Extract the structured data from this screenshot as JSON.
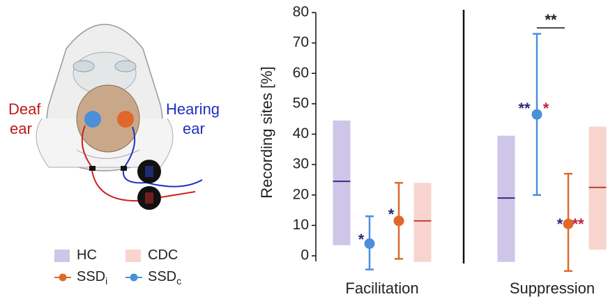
{
  "illustration": {
    "left_label": [
      "Deaf",
      "ear"
    ],
    "right_label": [
      "Hearing",
      "ear"
    ]
  },
  "chart_data": {
    "type": "range",
    "ylabel": "Recording sites [%]",
    "categories": [
      "Facilitation",
      "Suppression"
    ],
    "ylim": [
      0,
      80
    ],
    "yticks": [
      0,
      10,
      20,
      30,
      40,
      50,
      60,
      70,
      80
    ],
    "series": [
      {
        "name": "HC",
        "kind": "band",
        "color": "#cdc6e8",
        "line_color": "#3a2a7a",
        "low": [
          3.5,
          -2
        ],
        "high": [
          44.5,
          39.5
        ],
        "values": [
          24.5,
          19
        ]
      },
      {
        "name": "CDC",
        "kind": "band",
        "color": "#f7d5ce",
        "line_color": "#c0403a",
        "low": [
          -2,
          2
        ],
        "high": [
          24,
          42.5
        ],
        "values": [
          11.5,
          22.5
        ]
      },
      {
        "name": "SSD",
        "subscript": "i",
        "kind": "point",
        "color": "#e0682a",
        "values": [
          11.5,
          10.5
        ],
        "low": [
          -1,
          -5
        ],
        "high": [
          24,
          27
        ]
      },
      {
        "name": "SSD",
        "subscript": "c",
        "kind": "point",
        "color": "#4a90d9",
        "values": [
          4,
          46.5
        ],
        "low": [
          -4.5,
          20
        ],
        "high": [
          13,
          73
        ]
      }
    ],
    "annotations": [
      {
        "text": "*",
        "color": "#2a2a7a"
      },
      {
        "text": "*",
        "color": "#2a2a7a"
      },
      {
        "text": "**",
        "color": "#2a2a7a"
      },
      {
        "text": "*",
        "color": "#c0203a"
      },
      {
        "text": "*",
        "color": "#2a2a7a"
      },
      {
        "text": "**",
        "color": "#c0203a"
      },
      {
        "text": "**",
        "color": "#222222"
      }
    ]
  }
}
